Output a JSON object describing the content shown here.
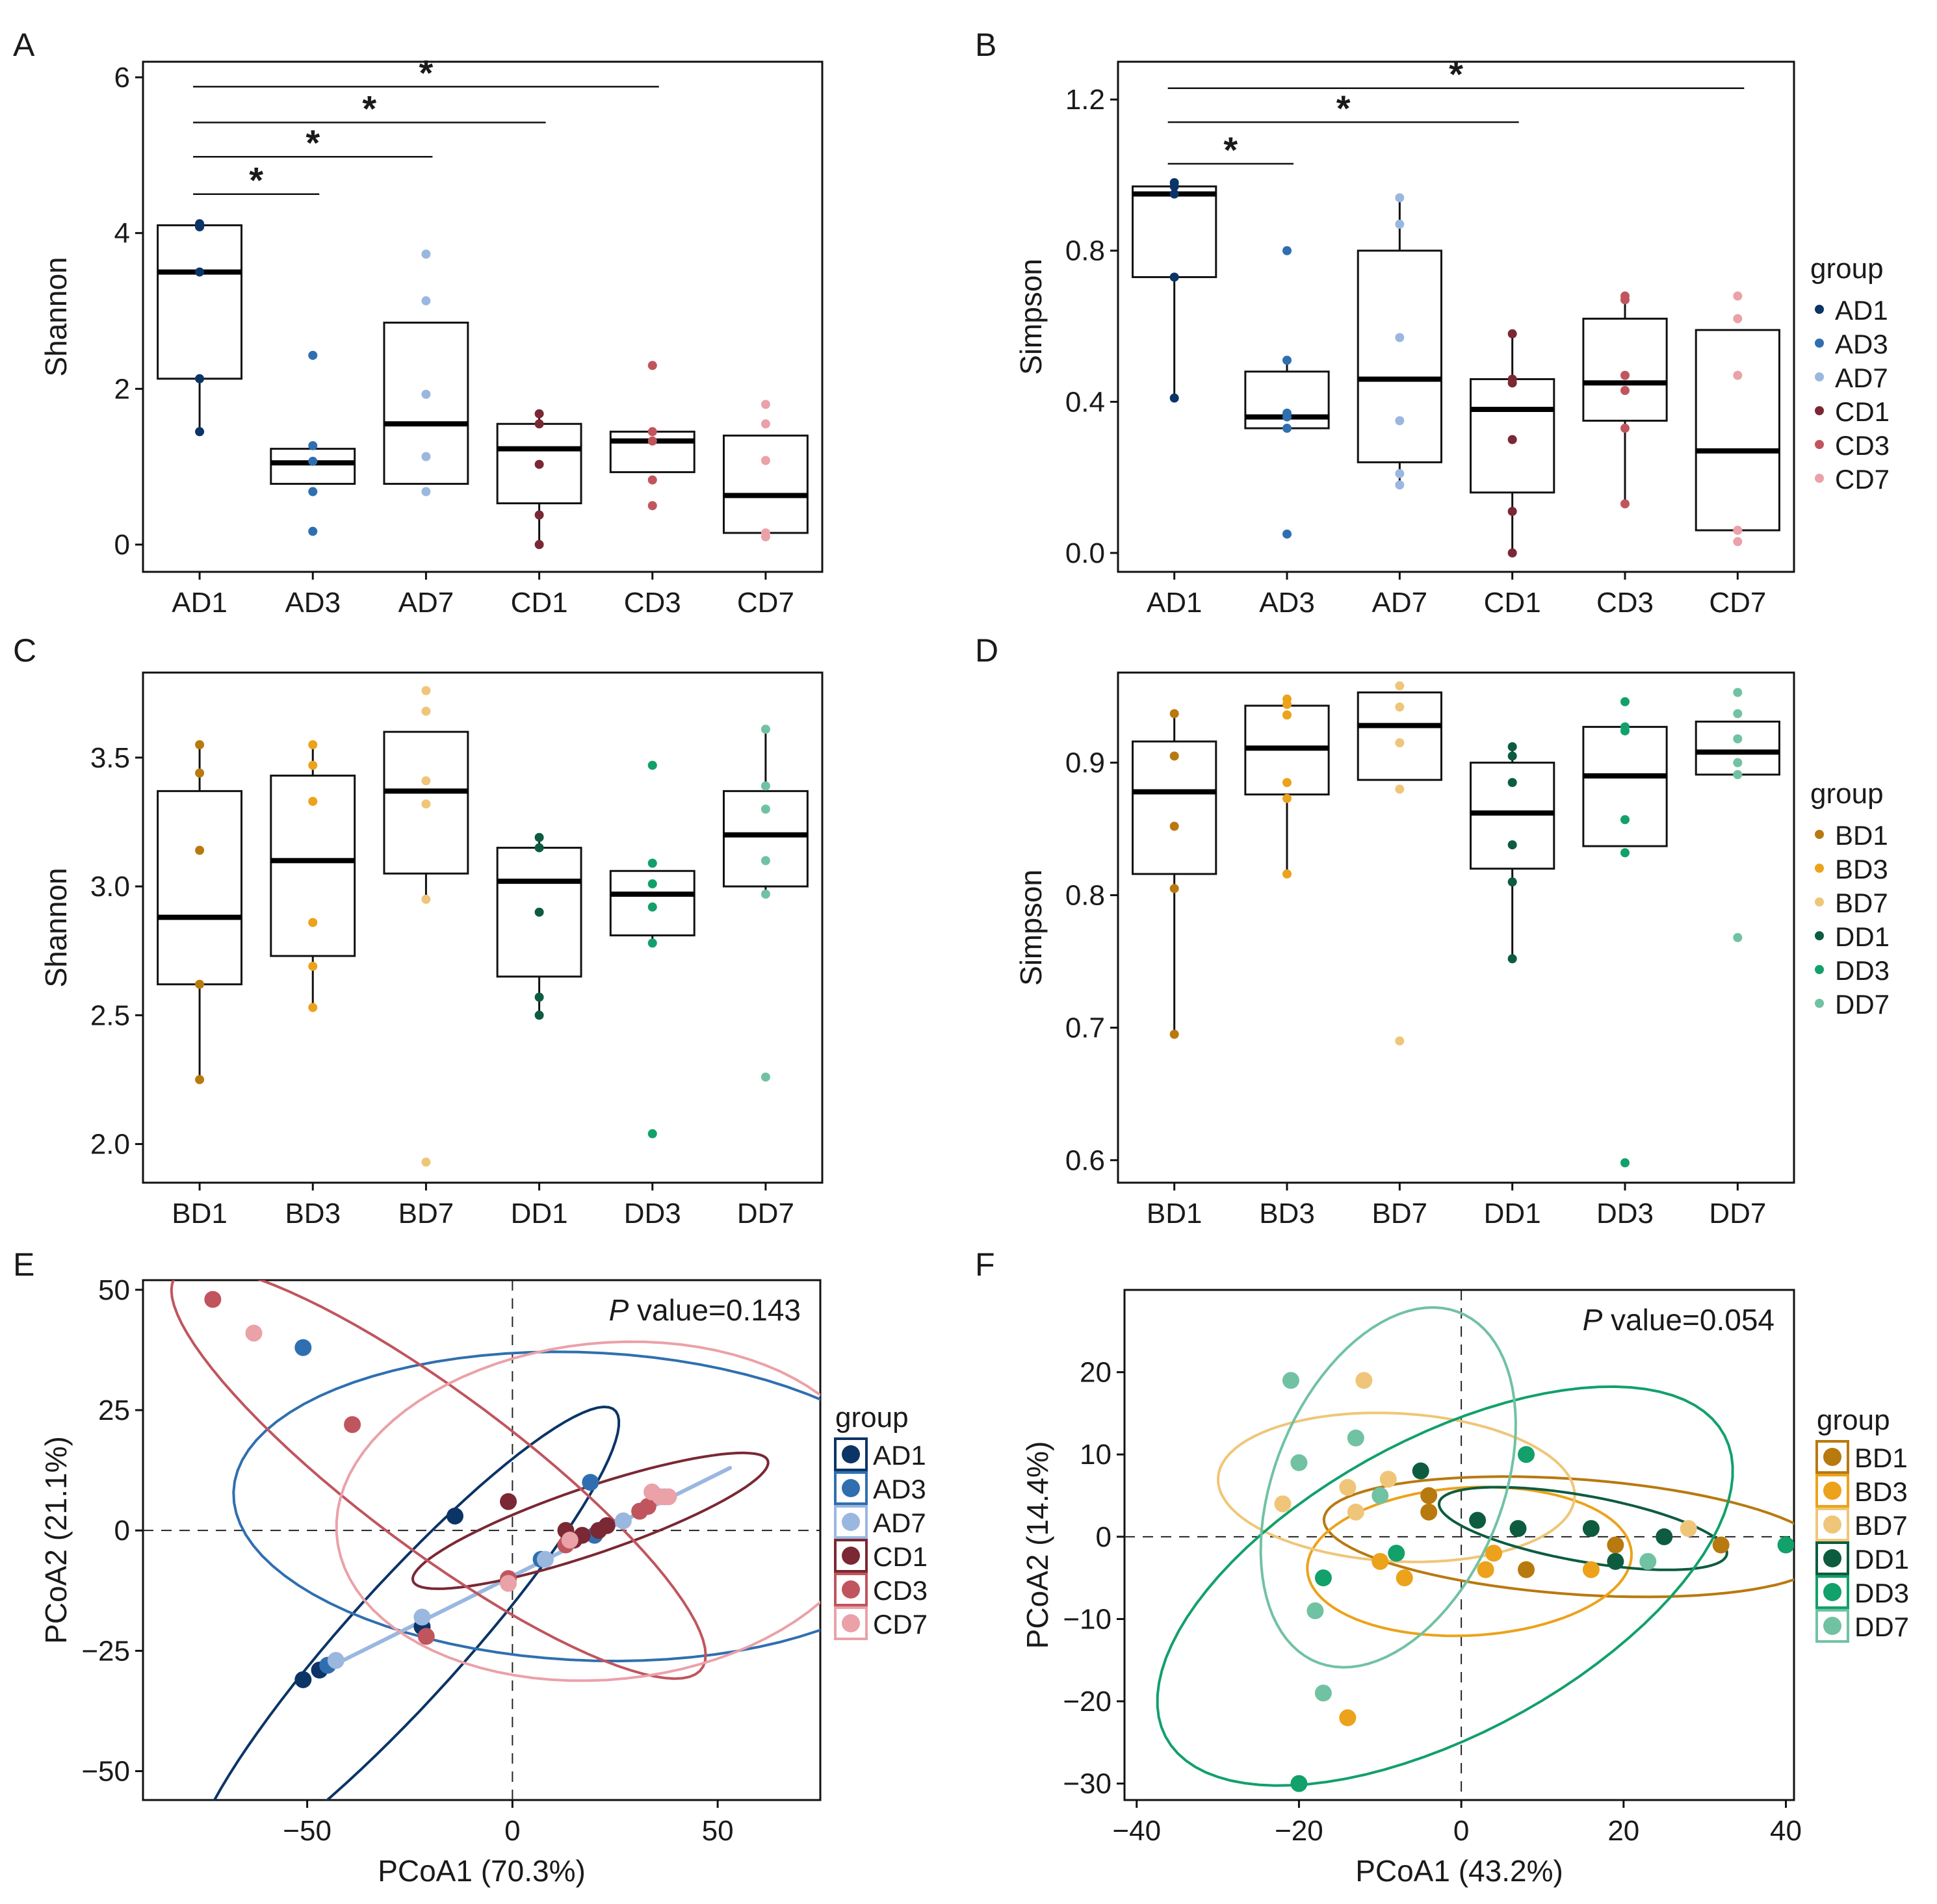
{
  "chart_data": [
    {
      "panel": "A",
      "type": "box",
      "xlabel": "",
      "ylabel": "Shannon",
      "ylim": [
        -0.35,
        6.2
      ],
      "yticks": [
        0,
        2,
        4,
        6
      ],
      "ytick_labels": [
        "0",
        "2",
        "4",
        "6"
      ],
      "categories": [
        "AD1",
        "AD3",
        "AD7",
        "CD1",
        "CD3",
        "CD7"
      ],
      "colors": [
        "#0b3467",
        "#2f6fb0",
        "#9ab7e0",
        "#7a2834",
        "#c0555e",
        "#eaa1a8"
      ],
      "boxes": [
        {
          "q1": 2.13,
          "median": 3.5,
          "q3": 4.1,
          "whisker_low": 1.45,
          "whisker_high": 4.12
        },
        {
          "q1": 0.78,
          "median": 1.05,
          "q3": 1.23,
          "whisker_low": 0.78,
          "whisker_high": 1.23
        },
        {
          "q1": 0.78,
          "median": 1.55,
          "q3": 2.85,
          "whisker_low": 0.78,
          "whisker_high": 2.85
        },
        {
          "q1": 0.53,
          "median": 1.23,
          "q3": 1.55,
          "whisker_low": 0.0,
          "whisker_high": 1.68
        },
        {
          "q1": 0.93,
          "median": 1.33,
          "q3": 1.45,
          "whisker_low": 0.93,
          "whisker_high": 1.45
        },
        {
          "q1": 0.15,
          "median": 0.63,
          "q3": 1.4,
          "whisker_low": 0.15,
          "whisker_high": 1.4
        }
      ],
      "points": [
        [
          1.45,
          2.13,
          3.5,
          4.08,
          4.12
        ],
        [
          0.17,
          0.68,
          1.07,
          1.27,
          2.43
        ],
        [
          0.68,
          1.13,
          1.93,
          3.13,
          3.73
        ],
        [
          0.0,
          0.38,
          1.03,
          1.55,
          1.68
        ],
        [
          0.5,
          0.83,
          1.33,
          1.45,
          2.3
        ],
        [
          0.1,
          0.15,
          1.08,
          1.55,
          1.8
        ]
      ],
      "significance": [
        {
          "from": "AD1",
          "to": "AD3",
          "y": 4.5,
          "label": "*"
        },
        {
          "from": "AD1",
          "to": "AD7",
          "y": 4.98,
          "label": "*"
        },
        {
          "from": "AD1",
          "to": "CD1",
          "y": 5.42,
          "label": "*"
        },
        {
          "from": "AD1",
          "to": "CD3",
          "y": 5.88,
          "label": "*"
        }
      ],
      "legend": null
    },
    {
      "panel": "B",
      "type": "box",
      "xlabel": "",
      "ylabel": "Simpson",
      "ylim": [
        -0.05,
        1.3
      ],
      "yticks": [
        0.0,
        0.4,
        0.8,
        1.2
      ],
      "ytick_labels": [
        "0.0",
        "0.4",
        "0.8",
        "1.2"
      ],
      "categories": [
        "AD1",
        "AD3",
        "AD7",
        "CD1",
        "CD3",
        "CD7"
      ],
      "colors": [
        "#0b3467",
        "#2f6fb0",
        "#9ab7e0",
        "#7a2834",
        "#c0555e",
        "#eaa1a8"
      ],
      "boxes": [
        {
          "q1": 0.73,
          "median": 0.95,
          "q3": 0.97,
          "whisker_low": 0.41,
          "whisker_high": 0.97
        },
        {
          "q1": 0.33,
          "median": 0.36,
          "q3": 0.48,
          "whisker_low": 0.33,
          "whisker_high": 0.51
        },
        {
          "q1": 0.24,
          "median": 0.46,
          "q3": 0.8,
          "whisker_low": 0.18,
          "whisker_high": 0.94
        },
        {
          "q1": 0.16,
          "median": 0.38,
          "q3": 0.46,
          "whisker_low": 0.0,
          "whisker_high": 0.58
        },
        {
          "q1": 0.35,
          "median": 0.45,
          "q3": 0.62,
          "whisker_low": 0.13,
          "whisker_high": 0.68
        },
        {
          "q1": 0.06,
          "median": 0.27,
          "q3": 0.59,
          "whisker_low": 0.06,
          "whisker_high": 0.59
        }
      ],
      "points": [
        [
          0.41,
          0.73,
          0.95,
          0.97,
          0.98
        ],
        [
          0.05,
          0.33,
          0.36,
          0.37,
          0.51,
          0.8
        ],
        [
          0.18,
          0.21,
          0.35,
          0.57,
          0.87,
          0.94
        ],
        [
          0.0,
          0.11,
          0.3,
          0.45,
          0.46,
          0.58
        ],
        [
          0.13,
          0.33,
          0.43,
          0.47,
          0.67,
          0.68
        ],
        [
          0.03,
          0.06,
          0.47,
          0.62,
          0.68
        ]
      ],
      "significance": [
        {
          "from": "AD1",
          "to": "AD3",
          "y": 1.03,
          "label": "*"
        },
        {
          "from": "AD1",
          "to": "CD1",
          "y": 1.14,
          "label": "*"
        },
        {
          "from": "AD1",
          "to": "CD7",
          "y": 1.23,
          "label": "*"
        }
      ],
      "legend": {
        "title": "group",
        "labels": [
          "AD1",
          "AD3",
          "AD7",
          "CD1",
          "CD3",
          "CD7"
        ],
        "style": "dot"
      }
    },
    {
      "panel": "C",
      "type": "box",
      "xlabel": "",
      "ylabel": "Shannon",
      "ylim": [
        1.85,
        3.83
      ],
      "yticks": [
        2.0,
        2.5,
        3.0,
        3.5
      ],
      "ytick_labels": [
        "2.0",
        "2.5",
        "3.0",
        "3.5"
      ],
      "categories": [
        "BD1",
        "BD3",
        "BD7",
        "DD1",
        "DD3",
        "DD7"
      ],
      "colors": [
        "#b8790f",
        "#eca21b",
        "#efc679",
        "#0d5c3f",
        "#12a06b",
        "#71c2a2"
      ],
      "boxes": [
        {
          "q1": 2.62,
          "median": 2.88,
          "q3": 3.37,
          "whisker_low": 2.25,
          "whisker_high": 3.55
        },
        {
          "q1": 2.73,
          "median": 3.1,
          "q3": 3.43,
          "whisker_low": 2.53,
          "whisker_high": 3.55
        },
        {
          "q1": 3.05,
          "median": 3.37,
          "q3": 3.6,
          "whisker_low": 2.95,
          "whisker_high": 3.6
        },
        {
          "q1": 2.65,
          "median": 3.02,
          "q3": 3.15,
          "whisker_low": 2.5,
          "whisker_high": 3.19
        },
        {
          "q1": 2.81,
          "median": 2.97,
          "q3": 3.06,
          "whisker_low": 2.78,
          "whisker_high": 3.06
        },
        {
          "q1": 3.0,
          "median": 3.2,
          "q3": 3.37,
          "whisker_low": 2.97,
          "whisker_high": 3.61
        }
      ],
      "points": [
        [
          2.25,
          2.62,
          3.14,
          3.44,
          3.55
        ],
        [
          2.53,
          2.69,
          2.86,
          3.33,
          3.47,
          3.55
        ],
        [
          1.93,
          2.95,
          3.32,
          3.41,
          3.68,
          3.76
        ],
        [
          2.5,
          2.57,
          2.9,
          3.15,
          3.19
        ],
        [
          2.04,
          2.78,
          2.92,
          3.01,
          3.09,
          3.47
        ],
        [
          2.26,
          2.97,
          3.1,
          3.3,
          3.39,
          3.61
        ]
      ],
      "significance": [],
      "legend": null
    },
    {
      "panel": "D",
      "type": "box",
      "xlabel": "",
      "ylabel": "Simpson",
      "ylim": [
        0.583,
        0.968
      ],
      "yticks": [
        0.6,
        0.7,
        0.8,
        0.9
      ],
      "ytick_labels": [
        "0.6",
        "0.7",
        "0.8",
        "0.9"
      ],
      "categories": [
        "BD1",
        "BD3",
        "BD7",
        "DD1",
        "DD3",
        "DD7"
      ],
      "colors": [
        "#b8790f",
        "#eca21b",
        "#efc679",
        "#0d5c3f",
        "#12a06b",
        "#71c2a2"
      ],
      "boxes": [
        {
          "q1": 0.816,
          "median": 0.878,
          "q3": 0.916,
          "whisker_low": 0.695,
          "whisker_high": 0.937
        },
        {
          "q1": 0.876,
          "median": 0.911,
          "q3": 0.943,
          "whisker_low": 0.816,
          "whisker_high": 0.948
        },
        {
          "q1": 0.887,
          "median": 0.928,
          "q3": 0.953,
          "whisker_low": 0.887,
          "whisker_high": 0.953
        },
        {
          "q1": 0.82,
          "median": 0.862,
          "q3": 0.9,
          "whisker_low": 0.752,
          "whisker_high": 0.912
        },
        {
          "q1": 0.837,
          "median": 0.89,
          "q3": 0.927,
          "whisker_low": 0.837,
          "whisker_high": 0.927
        },
        {
          "q1": 0.891,
          "median": 0.908,
          "q3": 0.931,
          "whisker_low": 0.891,
          "whisker_high": 0.931
        }
      ],
      "points": [
        [
          0.695,
          0.805,
          0.852,
          0.905,
          0.937
        ],
        [
          0.816,
          0.873,
          0.885,
          0.936,
          0.944,
          0.948
        ],
        [
          0.69,
          0.88,
          0.915,
          0.942,
          0.958
        ],
        [
          0.752,
          0.81,
          0.838,
          0.885,
          0.905,
          0.912
        ],
        [
          0.598,
          0.832,
          0.857,
          0.924,
          0.927,
          0.946
        ],
        [
          0.768,
          0.891,
          0.9,
          0.918,
          0.937,
          0.953
        ]
      ],
      "significance": [],
      "legend": {
        "title": "group",
        "labels": [
          "BD1",
          "BD3",
          "BD7",
          "DD1",
          "DD3",
          "DD7"
        ],
        "style": "dot"
      }
    },
    {
      "panel": "E",
      "type": "scatter",
      "xlabel": "PCoA1 (70.3%)",
      "ylabel": "PCoA2 (21.1%)",
      "xlim": [
        -90,
        75
      ],
      "ylim": [
        -56,
        52
      ],
      "xticks": [
        -50,
        0,
        50
      ],
      "xtick_labels": [
        "−50",
        "0",
        "50"
      ],
      "yticks": [
        -50,
        -25,
        0,
        25,
        50
      ],
      "ytick_labels": [
        "−50",
        "−25",
        "0",
        "25",
        "50"
      ],
      "annotation": {
        "italic": "P",
        "rest": " value=0.143"
      },
      "series": [
        {
          "name": "AD1",
          "color": "#0b3467",
          "points": [
            [
              -51,
              -31
            ],
            [
              -47,
              -29
            ],
            [
              -22,
              -20
            ],
            [
              -14,
              3
            ]
          ],
          "ellipse": {
            "cx": -26,
            "cy": -23,
            "rx": 70,
            "ry": 13,
            "angle": 43
          }
        },
        {
          "name": "AD3",
          "color": "#2f6fb0",
          "points": [
            [
              -51,
              38
            ],
            [
              -45,
              -28
            ],
            [
              19,
              10
            ],
            [
              20,
              -1
            ],
            [
              7,
              -6
            ]
          ],
          "ellipse": {
            "cx": 18,
            "cy": 5,
            "rx": 86,
            "ry": 32,
            "angle": -2
          }
        },
        {
          "name": "AD7",
          "color": "#9ab7e0",
          "points": [
            [
              -43,
              -27
            ],
            [
              -22,
              -18
            ],
            [
              8,
              -6
            ],
            [
              27,
              2
            ],
            [
              37,
              7
            ]
          ],
          "line": [
            [
              -46,
              -29
            ],
            [
              53,
              13
            ]
          ]
        },
        {
          "name": "CD1",
          "color": "#7a2834",
          "points": [
            [
              -1,
              6
            ],
            [
              13,
              0
            ],
            [
              15,
              -2
            ],
            [
              17,
              -1
            ],
            [
              21,
              0
            ],
            [
              23,
              1
            ]
          ],
          "ellipse": {
            "cx": 19,
            "cy": 2,
            "rx": 45,
            "ry": 7,
            "angle": 16
          }
        },
        {
          "name": "CD3",
          "color": "#c0555e",
          "points": [
            [
              -73,
              48
            ],
            [
              -39,
              22
            ],
            [
              -21,
              -22
            ],
            [
              -1,
              -10
            ],
            [
              13,
              -3
            ],
            [
              31,
              4
            ],
            [
              33,
              5
            ]
          ],
          "ellipse": {
            "cx": -18,
            "cy": 12,
            "rx": 76,
            "ry": 17,
            "angle": -32
          }
        },
        {
          "name": "CD7",
          "color": "#eaa1a8",
          "points": [
            [
              -63,
              41
            ],
            [
              -1,
              -11
            ],
            [
              14,
              -2
            ],
            [
              34,
              8
            ],
            [
              36,
              7
            ],
            [
              38,
              7
            ]
          ],
          "ellipse": {
            "cx": 23,
            "cy": 4,
            "rx": 66,
            "ry": 35,
            "angle": 4
          }
        }
      ],
      "legend": {
        "title": "group",
        "labels": [
          "AD1",
          "AD3",
          "AD7",
          "CD1",
          "CD3",
          "CD7"
        ],
        "style": "box"
      }
    },
    {
      "panel": "F",
      "type": "scatter",
      "xlabel": "PCoA1 (43.2%)",
      "ylabel": "PCoA2 (14.4%)",
      "xlim": [
        -41.5,
        41
      ],
      "ylim": [
        -32,
        30
      ],
      "xticks": [
        -40,
        -20,
        0,
        20,
        40
      ],
      "xtick_labels": [
        "−40",
        "−20",
        "0",
        "20",
        "40"
      ],
      "yticks": [
        -30,
        -20,
        -10,
        0,
        10,
        20
      ],
      "ytick_labels": [
        "−30",
        "−20",
        "−10",
        "0",
        "10",
        "20"
      ],
      "annotation": {
        "italic": "P",
        "rest": " value=0.054"
      },
      "series": [
        {
          "name": "BD1",
          "color": "#b8790f",
          "points": [
            [
              -4,
              5
            ],
            [
              -4,
              3
            ],
            [
              8,
              -4
            ],
            [
              19,
              -1
            ],
            [
              32,
              -1
            ]
          ],
          "ellipse": {
            "cx": 14,
            "cy": 0,
            "rx": 31,
            "ry": 7,
            "angle": -4
          }
        },
        {
          "name": "BD3",
          "color": "#eca21b",
          "points": [
            [
              -14,
              -22
            ],
            [
              -10,
              -3
            ],
            [
              -7,
              -5
            ],
            [
              3,
              -4
            ],
            [
              4,
              -2
            ],
            [
              16,
              -4
            ]
          ],
          "ellipse": {
            "cx": 1,
            "cy": -3,
            "rx": 20,
            "ry": 9,
            "angle": 3
          }
        },
        {
          "name": "BD7",
          "color": "#efc679",
          "points": [
            [
              -22,
              4
            ],
            [
              -14,
              6
            ],
            [
              -13,
              3
            ],
            [
              -12,
              19
            ],
            [
              -9,
              7
            ],
            [
              28,
              1
            ]
          ],
          "ellipse": {
            "cx": -8,
            "cy": 6,
            "rx": 22,
            "ry": 9,
            "angle": -3
          }
        },
        {
          "name": "DD1",
          "color": "#0d5c3f",
          "points": [
            [
              -5,
              8
            ],
            [
              2,
              2
            ],
            [
              7,
              1
            ],
            [
              16,
              1
            ],
            [
              19,
              -3
            ],
            [
              25,
              0
            ]
          ],
          "ellipse": {
            "cx": 15,
            "cy": 1,
            "rx": 18,
            "ry": 4,
            "angle": -10
          }
        },
        {
          "name": "DD3",
          "color": "#12a06b",
          "points": [
            [
              -20,
              -30
            ],
            [
              -8,
              -2
            ],
            [
              -17,
              -5
            ],
            [
              8,
              10
            ],
            [
              40,
              -1
            ]
          ],
          "ellipse": {
            "cx": -2,
            "cy": -6,
            "rx": 39,
            "ry": 18,
            "angle": 28
          }
        },
        {
          "name": "DD7",
          "color": "#71c2a2",
          "points": [
            [
              -21,
              19
            ],
            [
              -20,
              9
            ],
            [
              -18,
              -9
            ],
            [
              -17,
              -19
            ],
            [
              -13,
              12
            ],
            [
              -10,
              5
            ],
            [
              23,
              -3
            ]
          ],
          "ellipse": {
            "cx": -9,
            "cy": 6,
            "rx": 14,
            "ry": 23,
            "angle": -23
          }
        }
      ],
      "legend": {
        "title": "group",
        "labels": [
          "BD1",
          "BD3",
          "BD7",
          "DD1",
          "DD3",
          "DD7"
        ],
        "style": "box"
      }
    }
  ]
}
